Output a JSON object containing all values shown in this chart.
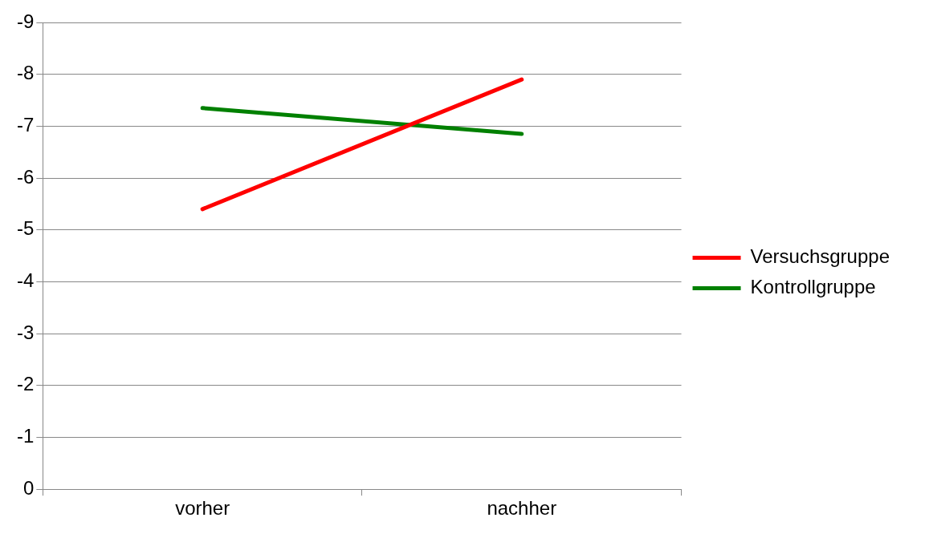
{
  "chart_data": {
    "type": "line",
    "categories": [
      "vorher",
      "nachher"
    ],
    "series": [
      {
        "name": "Versuchsgruppe",
        "color": "#ff0000",
        "values": [
          -5.4,
          -7.9
        ]
      },
      {
        "name": "Kontrollgruppe",
        "color": "#008000",
        "values": [
          -7.35,
          -6.85
        ]
      }
    ],
    "ylim": [
      0,
      -9
    ],
    "yticks": [
      0,
      -1,
      -2,
      -3,
      -4,
      -5,
      -6,
      -7,
      -8,
      -9
    ],
    "grid": "y",
    "legend": "right",
    "marker": "none",
    "line_style": "solid"
  }
}
